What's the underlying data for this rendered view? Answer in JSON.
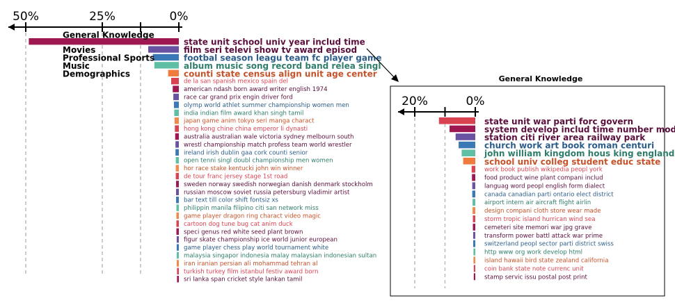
{
  "colors": {
    "crimson": "#9e1750",
    "red": "#d94251",
    "purple": "#6a52a3",
    "blue": "#3a78b6",
    "teal": "#5fbfa5",
    "orange": "#f07b3f",
    "orange_light": "#f08a4a",
    "text_purple": "#5b0f3c",
    "text_blue": "#2c5d8a",
    "text_teal": "#2f7d6b",
    "text_orange": "#c5532a"
  },
  "chart_data": [
    {
      "type": "bar",
      "orientation": "horizontal",
      "xlim": [
        0,
        0.55
      ],
      "xticks": [
        {
          "value": 0.5,
          "label": "50%"
        },
        {
          "value": 0.25,
          "label": "25%"
        },
        {
          "value": 0.0,
          "label": "0%"
        }
      ],
      "category_labels": [
        {
          "text": "General Knowledge",
          "row": 0
        },
        {
          "text": "Movies",
          "row": 1
        },
        {
          "text": "Professional Sports",
          "row": 2
        },
        {
          "text": "Music",
          "row": 3
        },
        {
          "text": "Demographics",
          "row": 4
        }
      ],
      "rows": [
        {
          "label": "state unit school univ year includ time",
          "value": 0.49,
          "color": "crimson",
          "text_color": "text_purple",
          "big": true
        },
        {
          "label": "film seri televi show tv award episod",
          "value": 0.1,
          "color": "purple",
          "text_color": "text_purple",
          "big": true
        },
        {
          "label": "footbal season leagu team fc player game",
          "value": 0.085,
          "color": "blue",
          "text_color": "text_blue",
          "big": true
        },
        {
          "label": "album music song record band relea singl",
          "value": 0.08,
          "color": "teal",
          "text_color": "text_teal",
          "big": true
        },
        {
          "label": "counti state census align unit age center",
          "value": 0.035,
          "color": "orange",
          "text_color": "text_orange",
          "big": true
        },
        {
          "label": "de la san spanish mexico spain del",
          "value": 0.025,
          "color": "red",
          "text_color": "red",
          "big": false
        },
        {
          "label": "american ndash born award writer english 1974",
          "value": 0.02,
          "color": "crimson",
          "text_color": "text_purple",
          "big": false
        },
        {
          "label": "race car grand prix engin driver ford",
          "value": 0.018,
          "color": "purple",
          "text_color": "text_purple",
          "big": false
        },
        {
          "label": "olymp world athlet summer championship women men",
          "value": 0.016,
          "color": "blue",
          "text_color": "text_blue",
          "big": false
        },
        {
          "label": "india indian film award khan singh tamil",
          "value": 0.015,
          "color": "teal",
          "text_color": "text_teal",
          "big": false
        },
        {
          "label": "japan game anim tokyo seri manga charact",
          "value": 0.014,
          "color": "orange_light",
          "text_color": "text_orange",
          "big": false
        },
        {
          "label": "hong kong chine china emperor li dynasti",
          "value": 0.013,
          "color": "red",
          "text_color": "red",
          "big": false
        },
        {
          "label": "australia australian wale victoria sydney melbourn south",
          "value": 0.012,
          "color": "crimson",
          "text_color": "text_purple",
          "big": false
        },
        {
          "label": "wrestl championship match profess team world wrestler",
          "value": 0.011,
          "color": "purple",
          "text_color": "text_purple",
          "big": false
        },
        {
          "label": "ireland irish dublin gaa cork counti senior",
          "value": 0.011,
          "color": "blue",
          "text_color": "text_blue",
          "big": false
        },
        {
          "label": "open tenni singl doubl championship men women",
          "value": 0.01,
          "color": "teal",
          "text_color": "text_teal",
          "big": false
        },
        {
          "label": "hor race stake kentucki john win winner",
          "value": 0.01,
          "color": "orange_light",
          "text_color": "text_orange",
          "big": false
        },
        {
          "label": "de tour franc jersey stage 1st road",
          "value": 0.01,
          "color": "red",
          "text_color": "red",
          "big": false
        },
        {
          "label": "sweden norway swedish norwegian danish denmark stockholm",
          "value": 0.009,
          "color": "crimson",
          "text_color": "text_purple",
          "big": false
        },
        {
          "label": "russian moscow soviet russia petersburg vladimir artist",
          "value": 0.009,
          "color": "purple",
          "text_color": "text_purple",
          "big": false
        },
        {
          "label": "bar text till color shift fontsiz xs",
          "value": 0.009,
          "color": "blue",
          "text_color": "text_blue",
          "big": false
        },
        {
          "label": "philippin manila filipino citi san network miss",
          "value": 0.008,
          "color": "teal",
          "text_color": "text_teal",
          "big": false
        },
        {
          "label": "game player dragon ring charact video magic",
          "value": 0.008,
          "color": "orange_light",
          "text_color": "text_orange",
          "big": false
        },
        {
          "label": "cartoon dog tune bug cat anim duck",
          "value": 0.008,
          "color": "red",
          "text_color": "red",
          "big": false
        },
        {
          "label": "speci genus red white seed plant brown",
          "value": 0.008,
          "color": "crimson",
          "text_color": "text_purple",
          "big": false
        },
        {
          "label": "figur skate championship ice world junior european",
          "value": 0.007,
          "color": "purple",
          "text_color": "text_purple",
          "big": false
        },
        {
          "label": "game player chess play world tournament white",
          "value": 0.007,
          "color": "blue",
          "text_color": "text_blue",
          "big": false
        },
        {
          "label": "malaysia singapor indonesia malay malaysian indonesian sultan",
          "value": 0.007,
          "color": "teal",
          "text_color": "text_teal",
          "big": false
        },
        {
          "label": "iran iranian persian ali mohammad tehran al",
          "value": 0.007,
          "color": "orange_light",
          "text_color": "text_orange",
          "big": false
        },
        {
          "label": "turkish turkey film istanbul festiv award born",
          "value": 0.006,
          "color": "red",
          "text_color": "red",
          "big": false
        },
        {
          "label": "sri lanka span cricket style lankan tamil",
          "value": 0.006,
          "color": "crimson",
          "text_color": "text_purple",
          "big": false
        }
      ]
    },
    {
      "type": "bar",
      "orientation": "horizontal",
      "title": "General Knowledge",
      "xlim": [
        0,
        0.26
      ],
      "xticks": [
        {
          "value": 0.2,
          "label": "20%"
        },
        {
          "value": 0.0,
          "label": "0%"
        }
      ],
      "rows": [
        {
          "label": "state unit war parti forc govern",
          "value": 0.12,
          "color": "red",
          "text_color": "text_purple",
          "big": true
        },
        {
          "label": "system develop includ time number model",
          "value": 0.085,
          "color": "crimson",
          "text_color": "text_purple",
          "big": true
        },
        {
          "label": "station citi river area railway park",
          "value": 0.065,
          "color": "purple",
          "text_color": "text_purple",
          "big": true
        },
        {
          "label": "church work art book roman centuri",
          "value": 0.055,
          "color": "blue",
          "text_color": "text_blue",
          "big": true
        },
        {
          "label": "john william kingdom hous king england",
          "value": 0.045,
          "color": "teal",
          "text_color": "text_teal",
          "big": true
        },
        {
          "label": "school univ colleg student educ state",
          "value": 0.04,
          "color": "orange",
          "text_color": "text_orange",
          "big": true
        },
        {
          "label": "work book publish wikipedia peopl york",
          "value": 0.012,
          "color": "red",
          "text_color": "red",
          "big": false
        },
        {
          "label": "food product wine plant compani includ",
          "value": 0.011,
          "color": "crimson",
          "text_color": "text_purple",
          "big": false
        },
        {
          "label": "languag word peopl english form dialect",
          "value": 0.01,
          "color": "purple",
          "text_color": "text_purple",
          "big": false
        },
        {
          "label": "canada canadian parti ontario elect district",
          "value": 0.01,
          "color": "blue",
          "text_color": "text_blue",
          "big": false
        },
        {
          "label": "airport intern air aircraft flight airlin",
          "value": 0.009,
          "color": "teal",
          "text_color": "text_teal",
          "big": false
        },
        {
          "label": "design compani cloth store wear made",
          "value": 0.009,
          "color": "orange_light",
          "text_color": "text_orange",
          "big": false
        },
        {
          "label": "storm tropic island hurrican wind sea",
          "value": 0.008,
          "color": "red",
          "text_color": "red",
          "big": false
        },
        {
          "label": "cemeteri site memori war jpg grave",
          "value": 0.008,
          "color": "crimson",
          "text_color": "text_purple",
          "big": false
        },
        {
          "label": "transform power battl attack war prime",
          "value": 0.007,
          "color": "purple",
          "text_color": "text_purple",
          "big": false
        },
        {
          "label": "switzerland peopl sector parti district swiss",
          "value": 0.007,
          "color": "blue",
          "text_color": "text_blue",
          "big": false
        },
        {
          "label": "http www org work develop html",
          "value": 0.006,
          "color": "teal",
          "text_color": "text_teal",
          "big": false
        },
        {
          "label": "island hawaii bird state zealand california",
          "value": 0.006,
          "color": "orange_light",
          "text_color": "text_orange",
          "big": false
        },
        {
          "label": "coin bank state note currenc unit",
          "value": 0.005,
          "color": "red",
          "text_color": "red",
          "big": false
        },
        {
          "label": "stamp servic issu postal post print",
          "value": 0.005,
          "color": "crimson",
          "text_color": "text_purple",
          "big": false
        }
      ]
    }
  ]
}
